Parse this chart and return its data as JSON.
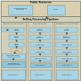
{
  "bg_color": "#e8e8dc",
  "title_main": "Public Resources",
  "title_pipeline": "RefSeq Processing Pipelines",
  "col_titles": [
    "Eukaryotic Genome Annotation",
    "Prokaryotic Pipeline",
    "RefSeqGene / LRG / Curated Status"
  ],
  "outer_bg": "#d0d0bc",
  "box_blue_light": "#a8d4e4",
  "box_blue_mid": "#90c4d8",
  "box_tan": "#d8d0b0",
  "box_white": "#f0f0e8",
  "arrow_color": "#505040",
  "border_dark": "#707060",
  "border_med": "#909080",
  "text_dark": "#202020",
  "text_mid": "#404030"
}
